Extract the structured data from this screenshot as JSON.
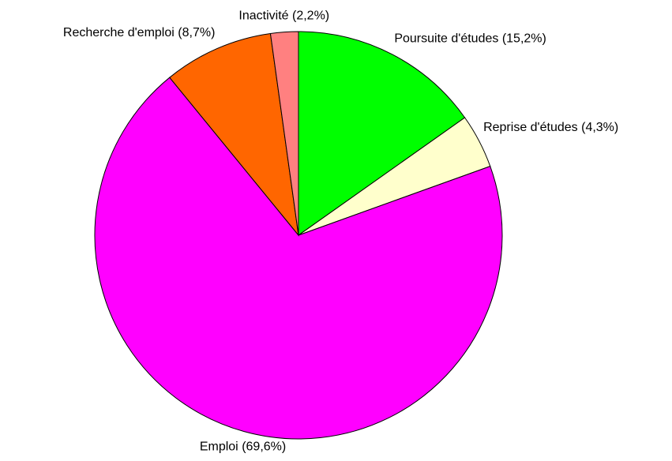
{
  "chart_data": {
    "type": "pie",
    "categories": [
      "Poursuite d'études",
      "Reprise d'études",
      "Emploi",
      "Recherche d'emploi",
      "Inactivité"
    ],
    "values": [
      15.2,
      4.3,
      69.6,
      8.7,
      2.2
    ],
    "value_labels": [
      "(15,2%)",
      "(4,3%)",
      "(69,6%)",
      "(8,7%)",
      "(2,2%)"
    ],
    "colors": [
      "#00ff00",
      "#ffffcc",
      "#ff00ff",
      "#ff6600",
      "#ff8080"
    ]
  }
}
